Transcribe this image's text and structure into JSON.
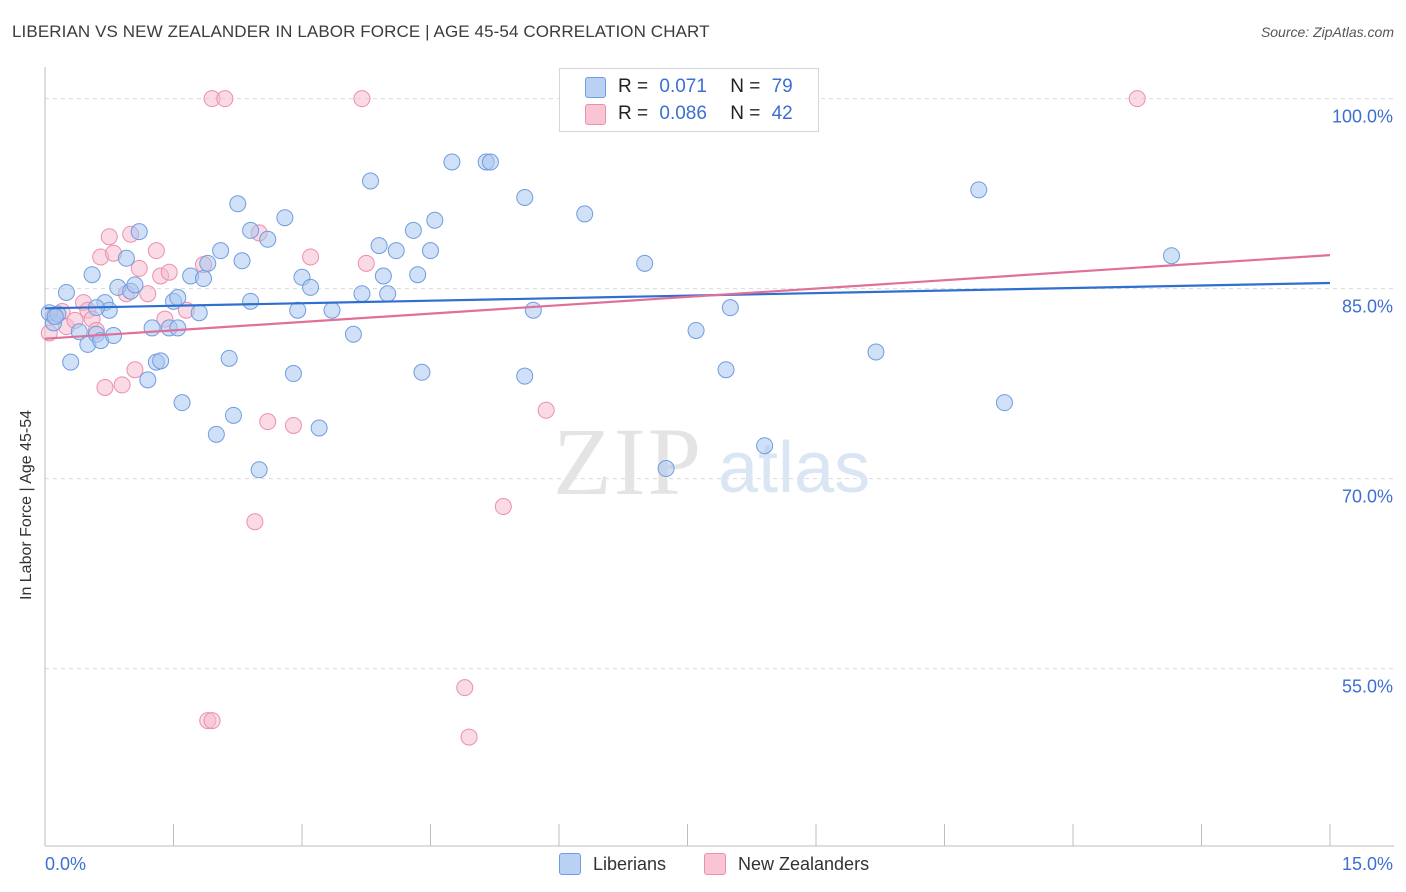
{
  "header": {
    "title": "LIBERIAN VS NEW ZEALANDER IN LABOR FORCE | AGE 45-54 CORRELATION CHART",
    "source": "Source: ZipAtlas.com"
  },
  "watermark": {
    "zip": "ZIP",
    "atlas": "atlas"
  },
  "legend": {
    "items": [
      {
        "r_label": "R =",
        "r_value": "0.071",
        "n_label": "N =",
        "n_value": "79",
        "fill": "#b9d2f3",
        "stroke": "#6f9de0"
      },
      {
        "r_label": "R =",
        "r_value": "0.086",
        "n_label": "N =",
        "n_value": "42",
        "fill": "#f9c5d4",
        "stroke": "#ec8fad"
      }
    ]
  },
  "bottom_legend": [
    "Liberians",
    "New Zealanders"
  ],
  "colors": {
    "blue_fill": "#a9c7ef",
    "blue_stroke": "#6f9de0",
    "blue_line": "#2f6fce",
    "pink_fill": "#f6bccd",
    "pink_stroke": "#ec8fad",
    "pink_line": "#e0709a",
    "tick_label": "#3c6fd1",
    "grid": "#d9d9d9"
  },
  "chart_data": {
    "type": "scatter",
    "title": "LIBERIAN VS NEW ZEALANDER IN LABOR FORCE | AGE 45-54 CORRELATION CHART",
    "xlabel": "",
    "ylabel": "In Labor Force | Age 45-54",
    "xlim": [
      0,
      15
    ],
    "ylim": [
      41,
      102.5
    ],
    "x_tick_labels": [
      "0.0%",
      "15.0%"
    ],
    "y_ticks": [
      55,
      70,
      85,
      100
    ],
    "y_tick_labels": [
      "55.0%",
      "70.0%",
      "85.0%",
      "100.0%"
    ],
    "grid": "horizontal dashed",
    "series": [
      {
        "name": "Liberians",
        "color": "blue",
        "points": [
          [
            0.05,
            83.1
          ],
          [
            0.1,
            82.3
          ],
          [
            0.15,
            83.0
          ],
          [
            0.25,
            84.7
          ],
          [
            0.3,
            79.2
          ],
          [
            0.4,
            81.6
          ],
          [
            0.5,
            80.6
          ],
          [
            0.55,
            86.1
          ],
          [
            0.6,
            81.4
          ],
          [
            0.65,
            80.9
          ],
          [
            0.7,
            83.9
          ],
          [
            0.75,
            83.3
          ],
          [
            0.8,
            81.3
          ],
          [
            0.85,
            85.1
          ],
          [
            0.95,
            87.4
          ],
          [
            1.0,
            84.8
          ],
          [
            1.05,
            85.3
          ],
          [
            1.1,
            89.5
          ],
          [
            1.2,
            77.8
          ],
          [
            1.25,
            81.9
          ],
          [
            1.3,
            79.2
          ],
          [
            1.35,
            79.3
          ],
          [
            1.45,
            81.9
          ],
          [
            1.55,
            81.9
          ],
          [
            1.5,
            84.0
          ],
          [
            1.55,
            84.3
          ],
          [
            1.6,
            76.0
          ],
          [
            1.7,
            86.0
          ],
          [
            1.8,
            83.1
          ],
          [
            1.85,
            85.8
          ],
          [
            1.9,
            87.0
          ],
          [
            2.0,
            73.5
          ],
          [
            2.05,
            88.0
          ],
          [
            2.15,
            79.5
          ],
          [
            2.2,
            75.0
          ],
          [
            2.25,
            91.7
          ],
          [
            2.3,
            87.2
          ],
          [
            2.4,
            84.0
          ],
          [
            2.4,
            89.6
          ],
          [
            2.5,
            70.7
          ],
          [
            2.6,
            88.9
          ],
          [
            2.8,
            90.6
          ],
          [
            2.9,
            78.3
          ],
          [
            2.95,
            83.3
          ],
          [
            3.0,
            85.9
          ],
          [
            3.1,
            85.1
          ],
          [
            3.2,
            74.0
          ],
          [
            3.35,
            83.3
          ],
          [
            3.6,
            81.4
          ],
          [
            3.7,
            84.6
          ],
          [
            3.8,
            93.5
          ],
          [
            3.9,
            88.4
          ],
          [
            3.95,
            86.0
          ],
          [
            4.0,
            84.6
          ],
          [
            4.1,
            88.0
          ],
          [
            4.3,
            89.6
          ],
          [
            4.35,
            86.1
          ],
          [
            4.5,
            88.0
          ],
          [
            4.55,
            90.4
          ],
          [
            4.4,
            78.4
          ],
          [
            4.75,
            95.0
          ],
          [
            5.15,
            95.0
          ],
          [
            5.2,
            95.0
          ],
          [
            5.6,
            92.2
          ],
          [
            5.6,
            78.1
          ],
          [
            5.7,
            83.3
          ],
          [
            6.3,
            90.9
          ],
          [
            7.0,
            87.0
          ],
          [
            7.25,
            70.8
          ],
          [
            7.6,
            81.7
          ],
          [
            7.95,
            78.6
          ],
          [
            8.0,
            83.5
          ],
          [
            8.4,
            72.6
          ],
          [
            9.7,
            80.0
          ],
          [
            10.9,
            92.8
          ],
          [
            11.2,
            76.0
          ],
          [
            13.15,
            87.6
          ],
          [
            0.12,
            82.8
          ],
          [
            0.6,
            83.5
          ]
        ]
      },
      {
        "name": "New Zealanders",
        "color": "pink",
        "points": [
          [
            0.05,
            81.5
          ],
          [
            0.1,
            82.8
          ],
          [
            0.2,
            83.2
          ],
          [
            0.25,
            82.0
          ],
          [
            0.35,
            82.5
          ],
          [
            0.45,
            83.9
          ],
          [
            0.5,
            83.3
          ],
          [
            0.55,
            82.6
          ],
          [
            0.6,
            81.7
          ],
          [
            0.65,
            87.5
          ],
          [
            0.7,
            77.2
          ],
          [
            0.75,
            89.1
          ],
          [
            0.8,
            87.8
          ],
          [
            0.9,
            77.4
          ],
          [
            0.95,
            84.6
          ],
          [
            1.0,
            89.3
          ],
          [
            1.05,
            78.6
          ],
          [
            1.1,
            86.6
          ],
          [
            1.2,
            84.6
          ],
          [
            1.3,
            88.0
          ],
          [
            1.35,
            86.0
          ],
          [
            1.4,
            82.6
          ],
          [
            1.45,
            86.3
          ],
          [
            1.65,
            83.3
          ],
          [
            1.85,
            86.9
          ],
          [
            1.9,
            50.9
          ],
          [
            1.95,
            50.9
          ],
          [
            1.95,
            100.0
          ],
          [
            2.1,
            100.0
          ],
          [
            2.45,
            66.6
          ],
          [
            2.5,
            89.4
          ],
          [
            2.6,
            74.5
          ],
          [
            2.9,
            74.2
          ],
          [
            3.1,
            87.5
          ],
          [
            3.7,
            100.0
          ],
          [
            3.75,
            87.0
          ],
          [
            4.9,
            53.5
          ],
          [
            4.95,
            49.6
          ],
          [
            5.35,
            67.8
          ],
          [
            5.85,
            75.4
          ],
          [
            7.0,
            100.0
          ],
          [
            12.75,
            100.0
          ]
        ]
      }
    ],
    "trend_lines": [
      {
        "series": "Liberians",
        "x": [
          0,
          15
        ],
        "y": [
          83.45,
          85.45
        ]
      },
      {
        "series": "New Zealanders",
        "x": [
          0,
          15
        ],
        "y": [
          81.05,
          87.65
        ]
      }
    ]
  }
}
